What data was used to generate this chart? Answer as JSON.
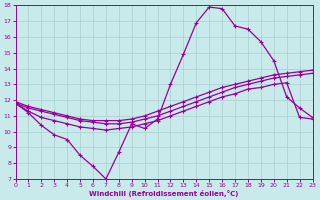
{
  "xlabel": "Windchill (Refroidissement éolien,°C)",
  "xlim": [
    0,
    23
  ],
  "ylim": [
    7,
    18
  ],
  "xticks": [
    0,
    1,
    2,
    3,
    4,
    5,
    6,
    7,
    8,
    9,
    10,
    11,
    12,
    13,
    14,
    15,
    16,
    17,
    18,
    19,
    20,
    21,
    22,
    23
  ],
  "yticks": [
    7,
    8,
    9,
    10,
    11,
    12,
    13,
    14,
    15,
    16,
    17,
    18
  ],
  "bg_color": "#c8eaea",
  "grid_color": "#a8d0d0",
  "line_color": "#990099",
  "line1_x": [
    0,
    1,
    2,
    3,
    4,
    5,
    6,
    7,
    8,
    9,
    10,
    11,
    12,
    13,
    14,
    15,
    16,
    17,
    18,
    19,
    20,
    21,
    22,
    23
  ],
  "line1_y": [
    11.8,
    11.2,
    10.4,
    9.8,
    9.5,
    8.5,
    7.8,
    7.0,
    8.7,
    10.5,
    10.2,
    10.8,
    13.0,
    14.9,
    16.9,
    17.9,
    17.8,
    16.7,
    16.5,
    15.7,
    14.5,
    12.2,
    11.5,
    10.9
  ],
  "line2_x": [
    0,
    1,
    2,
    3,
    4,
    5,
    6,
    7,
    8,
    9,
    10,
    11,
    12,
    13,
    14,
    15,
    16,
    17,
    18,
    19,
    20,
    21,
    22,
    23
  ],
  "line2_y": [
    11.8,
    11.5,
    11.3,
    11.1,
    10.9,
    10.7,
    10.6,
    10.5,
    10.5,
    10.6,
    10.8,
    11.0,
    11.3,
    11.6,
    11.9,
    12.2,
    12.5,
    12.8,
    13.0,
    13.2,
    13.4,
    13.5,
    13.6,
    13.7
  ],
  "line3_x": [
    0,
    1,
    2,
    3,
    4,
    5,
    6,
    7,
    8,
    9,
    10,
    11,
    12,
    13,
    14,
    15,
    16,
    17,
    18,
    19,
    20,
    21,
    22,
    23
  ],
  "line3_y": [
    11.9,
    11.6,
    11.4,
    11.2,
    11.0,
    10.8,
    10.7,
    10.7,
    10.7,
    10.8,
    11.0,
    11.3,
    11.6,
    11.9,
    12.2,
    12.5,
    12.8,
    13.0,
    13.2,
    13.4,
    13.6,
    13.7,
    13.8,
    13.9
  ],
  "line4_x": [
    0,
    1,
    2,
    3,
    4,
    5,
    6,
    7,
    8,
    9,
    10,
    11,
    12,
    13,
    14,
    15,
    16,
    17,
    18,
    19,
    20,
    21,
    22,
    23
  ],
  "line4_y": [
    11.8,
    11.3,
    10.9,
    10.7,
    10.5,
    10.3,
    10.2,
    10.1,
    10.2,
    10.3,
    10.5,
    10.7,
    11.0,
    11.3,
    11.6,
    11.9,
    12.2,
    12.4,
    12.7,
    12.8,
    13.0,
    13.1,
    10.9,
    10.8
  ]
}
